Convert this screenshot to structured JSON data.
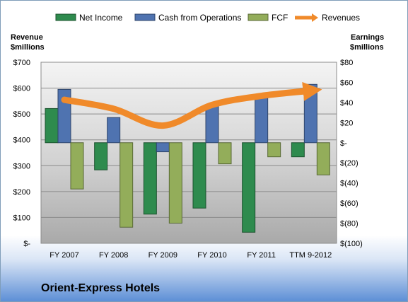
{
  "company_name": "Orient-Express Hotels",
  "chart_data": {
    "type": "bar",
    "categories": [
      "FY 2007",
      "FY 2008",
      "FY 2009",
      "FY 2010",
      "FY 2011",
      "TTM 9-2012"
    ],
    "series": [
      {
        "name": "Net Income",
        "axis": "right",
        "color": "#2e8b4e",
        "values": [
          34,
          -27,
          -71,
          -65,
          -89,
          -14
        ]
      },
      {
        "name": "Cash from Operations",
        "axis": "right",
        "color": "#4f73b0",
        "values": [
          53,
          25,
          -9,
          38,
          46,
          58
        ]
      },
      {
        "name": "FCF",
        "axis": "right",
        "color": "#93ad5a",
        "values": [
          -46,
          -84,
          -80,
          -21,
          -14,
          -32
        ]
      },
      {
        "name": "Revenues",
        "axis": "left",
        "type": "line",
        "color": "#f08a2a",
        "values": [
          555,
          520,
          455,
          535,
          570,
          590
        ]
      }
    ],
    "left_axis": {
      "label_line1": "Revenue",
      "label_line2": "$millions",
      "min": 0,
      "max": 700,
      "step": 100,
      "tick_labels": [
        "$-",
        "$100",
        "$200",
        "$300",
        "$400",
        "$500",
        "$600",
        "$700"
      ]
    },
    "right_axis": {
      "label_line1": "Earnings",
      "label_line2": "$millions",
      "min": -100,
      "max": 80,
      "step": 20,
      "tick_labels": [
        "$(100)",
        "$(80)",
        "$(60)",
        "$(40)",
        "$(20)",
        "$-",
        "$20",
        "$40",
        "$60",
        "$80"
      ]
    },
    "grid": true,
    "legend_position": "top"
  }
}
